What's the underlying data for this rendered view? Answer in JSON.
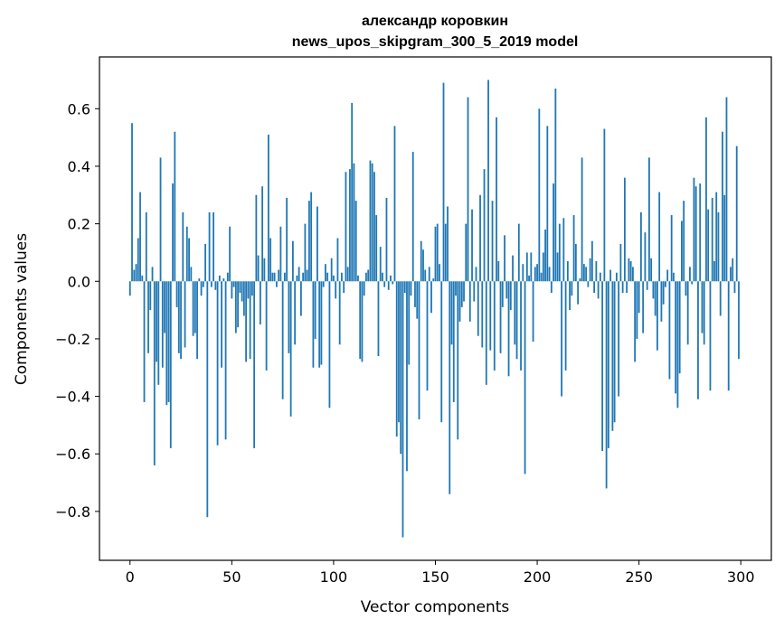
{
  "chart_data": {
    "type": "bar",
    "title": "александр коровкин",
    "subtitle": "news_upos_skipgram_300_5_2019 model",
    "xlabel": "Vector components",
    "ylabel": "Components values",
    "xlim": [
      -15,
      315
    ],
    "ylim": [
      -0.97,
      0.78
    ],
    "x_ticks": [
      0,
      50,
      100,
      150,
      200,
      250,
      300
    ],
    "y_ticks": [
      -0.8,
      -0.6,
      -0.4,
      -0.2,
      0.0,
      0.2,
      0.4,
      0.6
    ],
    "y_tick_labels": [
      "−0.8",
      "−0.6",
      "−0.4",
      "−0.2",
      "0.0",
      "0.2",
      "0.4",
      "0.6"
    ],
    "bar_color": "#1f77b4",
    "grid": false,
    "values": [
      -0.05,
      0.55,
      0.04,
      0.06,
      0.15,
      0.31,
      0.02,
      -0.42,
      0.24,
      -0.25,
      -0.1,
      0.05,
      -0.64,
      -0.28,
      -0.36,
      0.43,
      -0.3,
      -0.18,
      -0.43,
      -0.42,
      -0.58,
      0.34,
      0.52,
      -0.09,
      -0.25,
      -0.27,
      0.24,
      -0.23,
      0.19,
      0.15,
      0.05,
      -0.19,
      -0.18,
      -0.27,
      0.01,
      -0.05,
      -0.02,
      0.13,
      -0.82,
      0.24,
      -0.02,
      0.24,
      -0.03,
      -0.57,
      0.02,
      -0.3,
      0.01,
      -0.55,
      0.03,
      0.19,
      -0.06,
      -0.02,
      -0.18,
      -0.16,
      -0.04,
      -0.07,
      -0.12,
      -0.28,
      -0.06,
      -0.27,
      -0.05,
      -0.58,
      0.3,
      0.09,
      -0.15,
      0.33,
      0.08,
      -0.31,
      0.51,
      0.15,
      0.03,
      0.03,
      -0.02,
      0.04,
      0.19,
      -0.41,
      0.03,
      0.29,
      -0.25,
      -0.47,
      0.14,
      -0.22,
      0.02,
      0.05,
      -0.12,
      0.03,
      0.2,
      0.04,
      0.28,
      0.31,
      -0.3,
      -0.2,
      0.26,
      -0.3,
      -0.29,
      -0.02,
      0.06,
      0.03,
      -0.44,
      0.08,
      0.02,
      -0.06,
      0.15,
      -0.22,
      0.03,
      -0.04,
      0.38,
      0.05,
      0.39,
      0.62,
      0.41,
      0.28,
      0.02,
      -0.27,
      -0.28,
      -0.05,
      0.03,
      0.04,
      0.42,
      0.41,
      0.38,
      0.23,
      -0.26,
      0.12,
      0.03,
      -0.02,
      0.29,
      -0.03,
      0.02,
      -0.01,
      0.54,
      -0.54,
      -0.49,
      -0.6,
      -0.89,
      -0.04,
      -0.66,
      -0.29,
      -0.05,
      0.45,
      -0.09,
      -0.13,
      -0.48,
      0.14,
      0.11,
      0.04,
      -0.38,
      0.05,
      -0.11,
      0.01,
      0.19,
      0.2,
      0.06,
      -0.49,
      0.69,
      0.2,
      0.26,
      -0.74,
      -0.22,
      -0.42,
      -0.05,
      -0.55,
      -0.14,
      -0.09,
      -0.07,
      0.2,
      0.64,
      -0.14,
      0.25,
      -0.07,
      0.05,
      -0.19,
      0.3,
      -0.23,
      0.39,
      -0.36,
      0.7,
      -0.24,
      0.28,
      -0.31,
      0.57,
      0.07,
      -0.25,
      -0.09,
      0.16,
      -0.06,
      -0.33,
      -0.1,
      0.09,
      -0.22,
      -0.27,
      0.2,
      -0.31,
      0.06,
      -0.67,
      0.1,
      0.02,
      0.1,
      -0.21,
      0.05,
      0.06,
      0.6,
      0.03,
      0.1,
      0.18,
      0.54,
      0.05,
      -0.04,
      0.34,
      0.67,
      0.1,
      0.2,
      -0.4,
      0.22,
      -0.31,
      0.07,
      -0.1,
      -0.05,
      0.23,
      0.13,
      -0.08,
      0.01,
      0.43,
      0.06,
      0.05,
      -0.02,
      0.08,
      0.14,
      -0.04,
      0.07,
      -0.06,
      0.03,
      -0.59,
      0.53,
      -0.72,
      -0.58,
      0.04,
      -0.52,
      -0.49,
      0.03,
      -0.4,
      0.13,
      -0.04,
      0.36,
      -0.04,
      0.08,
      0.07,
      0.05,
      -0.28,
      -0.2,
      -0.11,
      0.24,
      -0.18,
      0.17,
      -0.03,
      0.43,
      0.08,
      -0.06,
      -0.12,
      -0.24,
      0.31,
      -0.14,
      -0.08,
      -0.02,
      0.04,
      -0.34,
      0.23,
      0.03,
      -0.39,
      -0.44,
      -0.32,
      0.21,
      0.28,
      -0.05,
      -0.22,
      0.05,
      -0.01,
      0.36,
      0.33,
      -0.41,
      0.34,
      -0.18,
      -0.22,
      0.57,
      0.25,
      -0.38,
      0.29,
      0.07,
      0.31,
      0.24,
      -0.12,
      0.52,
      0.3,
      0.64,
      -0.38,
      0.05,
      0.08,
      -0.04,
      0.47,
      -0.27
    ]
  }
}
